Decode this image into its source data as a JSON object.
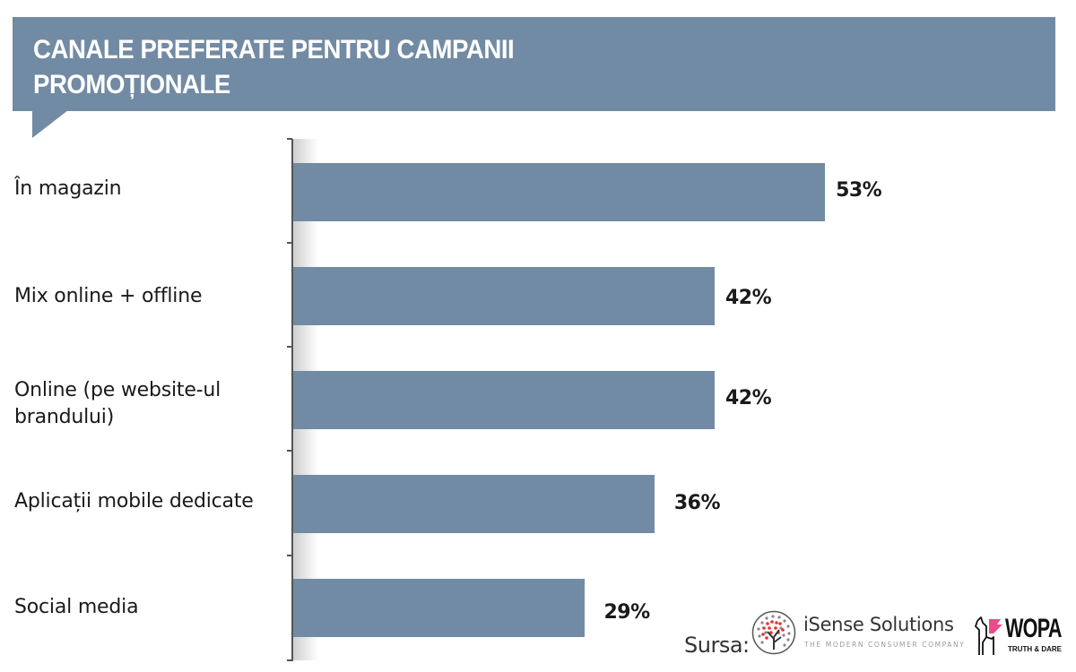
{
  "header": {
    "title_line1": "CANALE PREFERATE PENTRU CAMPANII",
    "title_line2": "PROMOȚIONALE"
  },
  "colors": {
    "bar": "#728ba4",
    "banner": "#728ba4",
    "text": "#1a1a1a"
  },
  "rows": [
    {
      "label_line1": "În magazin",
      "label_line2": "",
      "value": 53,
      "value_label": "53%"
    },
    {
      "label_line1": "Mix online + offline",
      "label_line2": "",
      "value": 42,
      "value_label": "42%"
    },
    {
      "label_line1": "Online (pe website-ul",
      "label_line2": "brandului)",
      "value": 42,
      "value_label": "42%"
    },
    {
      "label_line1": "Aplicații mobile dedicate",
      "label_line2": "",
      "value": 36,
      "value_label": "36%"
    },
    {
      "label_line1": "Social media",
      "label_line2": "",
      "value": 29,
      "value_label": "29%"
    }
  ],
  "footer": {
    "source_label": "Sursa:",
    "logos": [
      {
        "name": "iSense Solutions",
        "tagline": "THE MODERN CONSUMER COMPANY"
      },
      {
        "name": "WOPA",
        "tagline": "TRUTH & DARE"
      }
    ]
  },
  "chart_data": {
    "type": "bar",
    "orientation": "horizontal",
    "title": "CANALE PREFERATE PENTRU CAMPANII PROMOȚIONALE",
    "categories": [
      "În magazin",
      "Mix online + offline",
      "Online (pe website-ul brandului)",
      "Aplicații mobile dedicate",
      "Social media"
    ],
    "values": [
      53,
      42,
      42,
      36,
      29
    ],
    "value_labels": [
      "53%",
      "42%",
      "42%",
      "36%",
      "29%"
    ],
    "unit": "%",
    "xlabel": "",
    "ylabel": "",
    "xlim": [
      0,
      100
    ],
    "grid": false,
    "legend": null,
    "source": "Sursa: iSense Solutions, WOPA"
  }
}
